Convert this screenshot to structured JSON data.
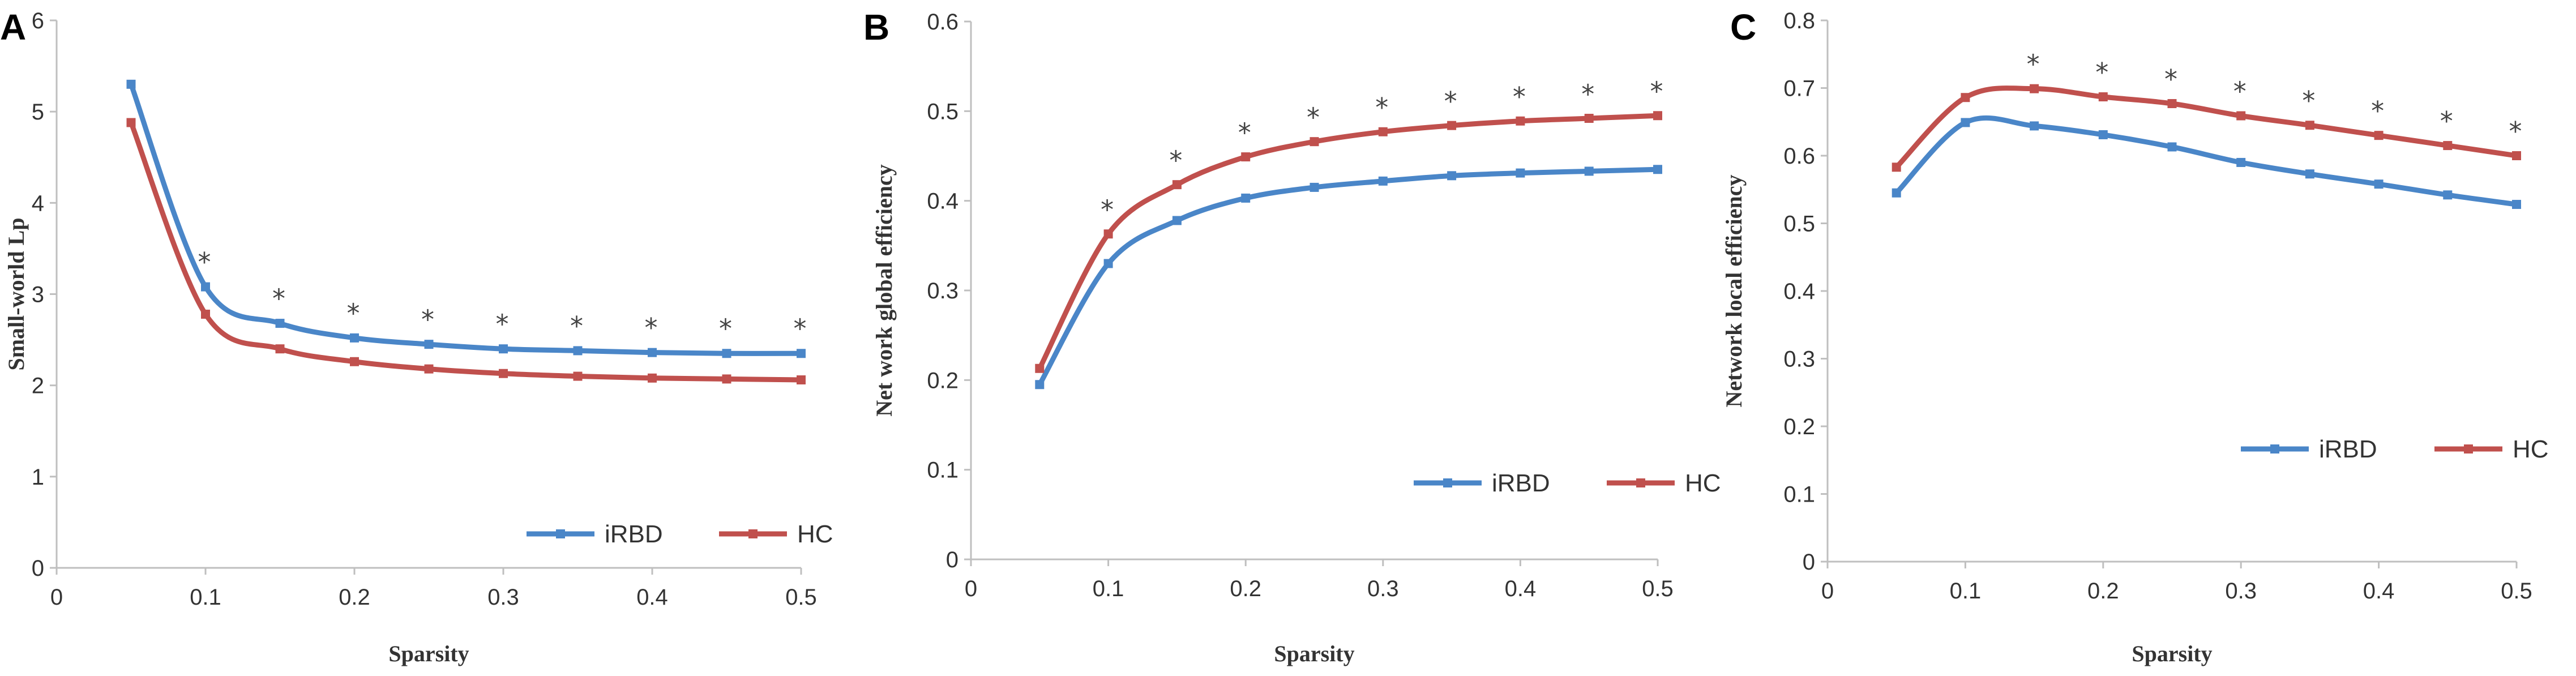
{
  "colors": {
    "iRBD": "#4a86c8",
    "HC": "#c0504d",
    "axis": "#bfbfbf",
    "text": "#333333",
    "star": "#444444"
  },
  "chart_data": [
    {
      "panel": "A",
      "type": "line",
      "xlabel": "Sparsity",
      "ylabel": "Small-world Lp",
      "xlim": [
        0,
        0.5
      ],
      "ylim": [
        0,
        6
      ],
      "xticks": [
        "0",
        "0.1",
        "0.2",
        "0.3",
        "0.4",
        "0.5"
      ],
      "yticks": [
        "0",
        "1",
        "2",
        "3",
        "4",
        "5",
        "6"
      ],
      "grid": false,
      "legend": "bottom-right",
      "x": [
        0.05,
        0.1,
        0.15,
        0.2,
        0.25,
        0.3,
        0.35,
        0.4,
        0.45,
        0.5
      ],
      "series": [
        {
          "name": "iRBD",
          "values": [
            5.3,
            3.08,
            2.68,
            2.52,
            2.45,
            2.4,
            2.38,
            2.36,
            2.35,
            2.35
          ]
        },
        {
          "name": "HC",
          "values": [
            4.88,
            2.78,
            2.4,
            2.26,
            2.18,
            2.13,
            2.1,
            2.08,
            2.07,
            2.06
          ]
        }
      ],
      "significance": {
        "x": [
          0.1,
          0.15,
          0.2,
          0.25,
          0.3,
          0.35,
          0.4,
          0.45,
          0.5
        ],
        "marker": "*"
      }
    },
    {
      "panel": "B",
      "type": "line",
      "xlabel": "Sparsity",
      "ylabel": "Net work global efficiency",
      "xlim": [
        0,
        0.5
      ],
      "ylim": [
        0,
        0.6
      ],
      "xticks": [
        "0",
        "0.1",
        "0.2",
        "0.3",
        "0.4",
        "0.5"
      ],
      "yticks": [
        "0",
        "0.1",
        "0.2",
        "0.3",
        "0.4",
        "0.5",
        "0.6"
      ],
      "grid": false,
      "legend": "bottom-right",
      "x": [
        0.05,
        0.1,
        0.15,
        0.2,
        0.25,
        0.3,
        0.35,
        0.4,
        0.45,
        0.5
      ],
      "series": [
        {
          "name": "iRBD",
          "values": [
            0.195,
            0.33,
            0.378,
            0.403,
            0.415,
            0.422,
            0.428,
            0.431,
            0.433,
            0.435
          ]
        },
        {
          "name": "HC",
          "values": [
            0.213,
            0.363,
            0.418,
            0.449,
            0.466,
            0.477,
            0.484,
            0.489,
            0.492,
            0.495
          ]
        }
      ],
      "significance": {
        "x": [
          0.1,
          0.15,
          0.2,
          0.25,
          0.3,
          0.35,
          0.4,
          0.45,
          0.5
        ],
        "marker": "*"
      }
    },
    {
      "panel": "C",
      "type": "line",
      "xlabel": "Sparsity",
      "ylabel": "Network local efficiency",
      "xlim": [
        0,
        0.5
      ],
      "ylim": [
        0,
        0.8
      ],
      "xticks": [
        "0",
        "0.1",
        "0.2",
        "0.3",
        "0.4",
        "0.5"
      ],
      "yticks": [
        "0",
        "0.1",
        "0.2",
        "0.3",
        "0.4",
        "0.5",
        "0.6",
        "0.7",
        "0.8"
      ],
      "grid": false,
      "legend": "bottom-right",
      "x": [
        0.05,
        0.1,
        0.15,
        0.2,
        0.25,
        0.3,
        0.35,
        0.4,
        0.45,
        0.5
      ],
      "series": [
        {
          "name": "iRBD",
          "values": [
            0.545,
            0.649,
            0.644,
            0.631,
            0.613,
            0.59,
            0.573,
            0.558,
            0.542,
            0.528
          ]
        },
        {
          "name": "HC",
          "values": [
            0.583,
            0.686,
            0.699,
            0.687,
            0.677,
            0.659,
            0.645,
            0.63,
            0.615,
            0.6
          ]
        }
      ],
      "significance": {
        "x": [
          0.15,
          0.2,
          0.25,
          0.3,
          0.35,
          0.4,
          0.45,
          0.5
        ],
        "marker": "*"
      }
    }
  ]
}
